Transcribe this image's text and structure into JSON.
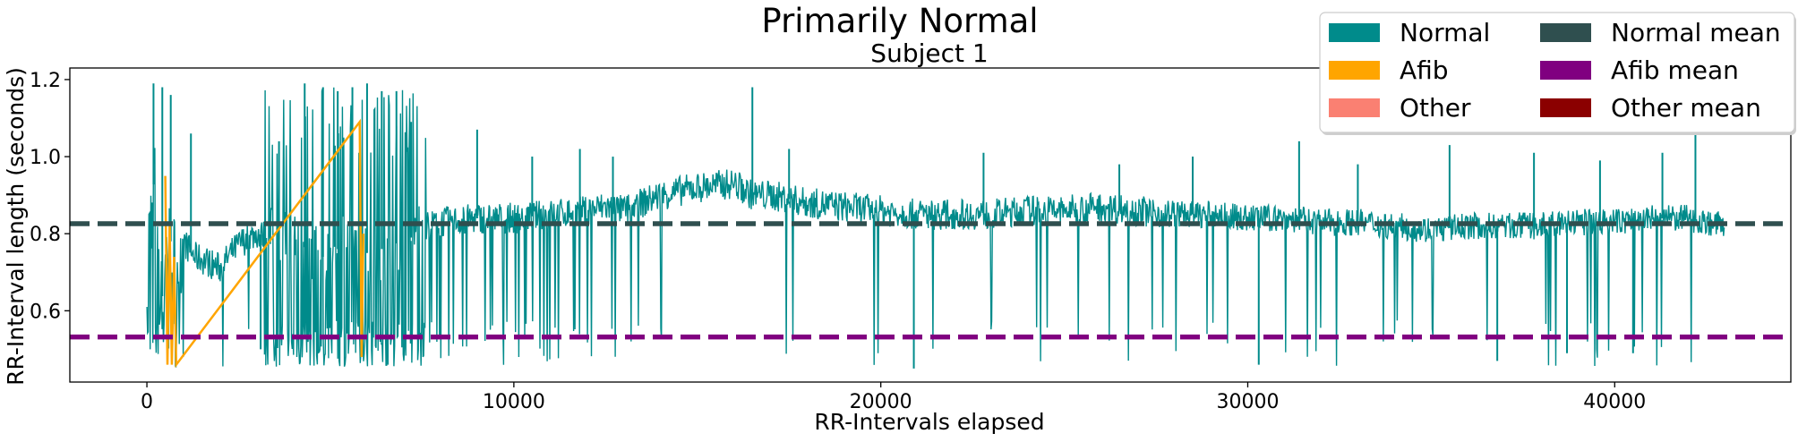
{
  "chart_data": {
    "type": "line",
    "title": "Primarily Normal",
    "subtitle": "Subject 1",
    "xlabel": "RR-Intervals elapsed",
    "ylabel": "RR-Interval length (seconds)",
    "xlim": [
      -2100,
      44800
    ],
    "ylim": [
      0.415,
      1.23
    ],
    "xticks": [
      0,
      10000,
      20000,
      30000,
      40000
    ],
    "xtick_labels": [
      "0",
      "10000",
      "20000",
      "30000",
      "40000"
    ],
    "yticks": [
      0.6,
      0.8,
      1.0,
      1.2
    ],
    "ytick_labels": [
      "0.6",
      "0.8",
      "1.0",
      "1.2"
    ],
    "grid": false,
    "legend_position": "top-right",
    "legend": [
      {
        "label": "Normal",
        "color": "#008b8b"
      },
      {
        "label": "Afib",
        "color": "#ffa500"
      },
      {
        "label": "Other",
        "color": "#fa8072"
      },
      {
        "label": "Normal mean",
        "color": "#2f4f4f"
      },
      {
        "label": "Afib mean",
        "color": "#800080"
      },
      {
        "label": "Other mean",
        "color": "#8b0000"
      }
    ],
    "series": [
      {
        "name": "Normal",
        "color": "#008b8b",
        "x": [
          0,
          200,
          400,
          600,
          800,
          1000,
          1300,
          1600,
          2000,
          2300,
          2600,
          3000,
          3400,
          3800,
          4200,
          4600,
          5000,
          5400,
          5800,
          6200,
          6600,
          7000,
          7500,
          8000,
          9000,
          10000,
          11000,
          12000,
          12500,
          13000,
          13500,
          14000,
          15000,
          16000,
          16500,
          17000,
          18000,
          19000,
          20000,
          21000,
          22000,
          23000,
          24000,
          25000,
          26000,
          27000,
          28000,
          29000,
          30000,
          31000,
          32000,
          33000,
          34000,
          35000,
          36000,
          37000,
          38000,
          39000,
          40000,
          41000,
          42000,
          42500,
          43000
        ],
        "y": [
          0.73,
          0.95,
          0.62,
          0.8,
          0.72,
          0.78,
          0.74,
          0.73,
          0.71,
          0.75,
          0.78,
          0.8,
          0.79,
          0.78,
          0.77,
          0.75,
          0.73,
          0.79,
          0.76,
          0.74,
          0.78,
          0.77,
          0.82,
          0.83,
          0.84,
          0.84,
          0.85,
          0.86,
          0.87,
          0.86,
          0.88,
          0.9,
          0.92,
          0.93,
          0.9,
          0.9,
          0.88,
          0.87,
          0.86,
          0.85,
          0.85,
          0.85,
          0.86,
          0.86,
          0.87,
          0.86,
          0.85,
          0.85,
          0.84,
          0.84,
          0.83,
          0.83,
          0.82,
          0.81,
          0.82,
          0.82,
          0.82,
          0.83,
          0.83,
          0.84,
          0.84,
          0.83,
          0.82
        ],
        "spike_x": [
          180,
          420,
          650,
          1200,
          3100,
          3600,
          4300,
          4800,
          5200,
          5600,
          6000,
          6400,
          6800,
          7200,
          9000,
          10500,
          11800,
          12700,
          16500,
          17500,
          20900,
          22800,
          26500,
          28500,
          30300,
          31400,
          33000,
          35500,
          36800,
          37800,
          38700,
          39600,
          40500,
          41300,
          42200
        ],
        "spike_y": [
          1.19,
          1.18,
          1.16,
          1.06,
          0.5,
          1.04,
          1.19,
          1.18,
          1.17,
          1.18,
          1.19,
          1.17,
          1.17,
          1.09,
          1.07,
          1.0,
          1.02,
          1.0,
          1.18,
          1.02,
          0.45,
          1.01,
          0.98,
          1.0,
          0.46,
          1.04,
          0.98,
          1.03,
          0.47,
          1.01,
          0.49,
          0.99,
          0.49,
          1.01,
          1.12
        ]
      },
      {
        "name": "Afib",
        "color": "#ffa500",
        "x": [
          500,
          560,
          620,
          680,
          740,
          800,
          5800,
          5850,
          5900
        ],
        "y": [
          0.95,
          0.46,
          0.82,
          0.46,
          0.74,
          0.46,
          1.09,
          0.48,
          0.8
        ]
      }
    ],
    "reference_lines": [
      {
        "name": "Normal mean",
        "y": 0.826,
        "color": "#2f4f4f",
        "style": "dashed"
      },
      {
        "name": "Afib mean",
        "y": 0.532,
        "color": "#800080",
        "style": "dashed"
      }
    ]
  }
}
